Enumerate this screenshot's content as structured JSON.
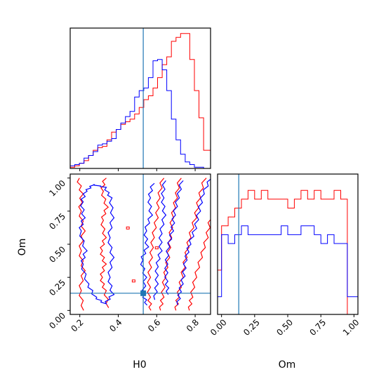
{
  "chart_data": {
    "type": "corner",
    "parameters": [
      "H0",
      "Om"
    ],
    "truths": {
      "H0": 0.53,
      "Om": 0.13
    },
    "colors": {
      "series_a": "#ff0000",
      "series_b": "#0000ff",
      "truth": "#1f77b4"
    },
    "series": [
      {
        "color": "red"
      },
      {
        "color": "blue"
      }
    ],
    "axes": {
      "h0": {
        "label": "H0",
        "range": [
          0.15,
          0.88
        ],
        "ticks": [
          0.2,
          0.4,
          0.6,
          0.8
        ],
        "tick_labels": [
          "0.2",
          "0.4",
          "0.6",
          "0.8"
        ]
      },
      "om": {
        "label": "Om",
        "range": [
          -0.03,
          1.03
        ],
        "ticks": [
          0.0,
          0.25,
          0.5,
          0.75,
          1.0
        ],
        "tick_labels": [
          "0.00",
          "0.25",
          "0.50",
          "0.75",
          "1.00"
        ]
      }
    },
    "hist_h0": {
      "bin_edges": [
        0.15,
        0.1739,
        0.1979,
        0.2218,
        0.2457,
        0.2696,
        0.2936,
        0.3175,
        0.3414,
        0.3653,
        0.3893,
        0.4132,
        0.4371,
        0.461,
        0.485,
        0.5089,
        0.5328,
        0.5567,
        0.5807,
        0.6046,
        0.6285,
        0.6524,
        0.6764,
        0.7003,
        0.7242,
        0.7481,
        0.7721,
        0.796,
        0.8199,
        0.8438,
        0.8678,
        0.88
      ],
      "red": [
        1,
        2,
        4,
        6,
        10,
        14,
        16,
        17,
        22,
        28,
        30,
        34,
        36,
        38,
        42,
        47,
        53,
        56,
        62,
        70,
        80,
        86,
        98,
        101,
        104,
        104,
        84,
        60,
        39,
        14,
        14
      ],
      "blue": [
        2,
        3,
        4,
        8,
        10,
        13,
        18,
        19,
        21,
        23,
        30,
        35,
        40,
        44,
        55,
        60,
        62,
        70,
        83,
        84,
        76,
        60,
        38,
        22,
        11,
        5,
        3,
        1,
        1,
        0,
        0
      ]
    },
    "hist_om": {
      "bin_edges": [
        -0.03,
        0.0,
        0.05,
        0.1,
        0.15,
        0.2,
        0.25,
        0.3,
        0.35,
        0.4,
        0.45,
        0.5,
        0.55,
        0.6,
        0.65,
        0.7,
        0.75,
        0.8,
        0.85,
        0.9,
        0.95,
        1.0,
        1.03
      ],
      "red": [
        5,
        10,
        11,
        12,
        13,
        14,
        13,
        14,
        13,
        13,
        13,
        12,
        13,
        14,
        13,
        14,
        13,
        13,
        14,
        13,
        0,
        0
      ],
      "blue": [
        2,
        9,
        8,
        9,
        10,
        9,
        9,
        9,
        9,
        9,
        10,
        9,
        9,
        10,
        10,
        9,
        8,
        9,
        8,
        8,
        2,
        2
      ]
    },
    "contours": {
      "red": [
        [
          [
            0.33,
            1.0
          ],
          [
            0.315,
            0.9
          ],
          [
            0.34,
            0.78
          ],
          [
            0.315,
            0.68
          ],
          [
            0.33,
            0.55
          ],
          [
            0.31,
            0.45
          ],
          [
            0.33,
            0.35
          ],
          [
            0.31,
            0.25
          ],
          [
            0.33,
            0.15
          ],
          [
            0.35,
            0.02
          ]
        ],
        [
          [
            0.19,
            1.0
          ],
          [
            0.21,
            0.88
          ],
          [
            0.2,
            0.75
          ],
          [
            0.22,
            0.6
          ],
          [
            0.2,
            0.45
          ],
          [
            0.22,
            0.3
          ],
          [
            0.2,
            0.15
          ],
          [
            0.22,
            0.0
          ]
        ],
        [
          [
            0.63,
            1.0
          ],
          [
            0.61,
            0.85
          ],
          [
            0.6,
            0.7
          ],
          [
            0.58,
            0.55
          ],
          [
            0.57,
            0.4
          ],
          [
            0.56,
            0.25
          ],
          [
            0.56,
            0.1
          ],
          [
            0.57,
            0.0
          ]
        ],
        [
          [
            0.72,
            1.0
          ],
          [
            0.7,
            0.85
          ],
          [
            0.68,
            0.7
          ],
          [
            0.67,
            0.55
          ],
          [
            0.66,
            0.4
          ],
          [
            0.64,
            0.25
          ],
          [
            0.63,
            0.1
          ],
          [
            0.62,
            0.0
          ]
        ],
        [
          [
            0.85,
            1.0
          ],
          [
            0.82,
            0.85
          ],
          [
            0.8,
            0.7
          ],
          [
            0.77,
            0.55
          ],
          [
            0.75,
            0.4
          ],
          [
            0.73,
            0.25
          ],
          [
            0.71,
            0.1
          ],
          [
            0.7,
            0.0
          ]
        ],
        [
          [
            0.88,
            0.7
          ],
          [
            0.86,
            0.55
          ],
          [
            0.83,
            0.4
          ],
          [
            0.8,
            0.25
          ],
          [
            0.78,
            0.1
          ],
          [
            0.77,
            0.0
          ]
        ]
      ],
      "blue": [
        [
          [
            0.58,
            0.96
          ],
          [
            0.56,
            0.85
          ],
          [
            0.57,
            0.72
          ],
          [
            0.54,
            0.6
          ],
          [
            0.55,
            0.48
          ],
          [
            0.52,
            0.38
          ],
          [
            0.54,
            0.25
          ],
          [
            0.53,
            0.12
          ],
          [
            0.55,
            0.04
          ]
        ],
        [
          [
            0.64,
            0.98
          ],
          [
            0.63,
            0.85
          ],
          [
            0.64,
            0.72
          ],
          [
            0.62,
            0.58
          ],
          [
            0.62,
            0.45
          ],
          [
            0.6,
            0.33
          ],
          [
            0.6,
            0.2
          ],
          [
            0.59,
            0.08
          ]
        ],
        [
          [
            0.73,
            0.98
          ],
          [
            0.71,
            0.85
          ],
          [
            0.69,
            0.72
          ],
          [
            0.68,
            0.6
          ],
          [
            0.66,
            0.48
          ],
          [
            0.65,
            0.35
          ],
          [
            0.65,
            0.22
          ],
          [
            0.66,
            0.12
          ]
        ],
        [
          [
            0.88,
            1.0
          ],
          [
            0.84,
            0.88
          ],
          [
            0.82,
            0.75
          ],
          [
            0.8,
            0.62
          ],
          [
            0.77,
            0.5
          ],
          [
            0.75,
            0.38
          ],
          [
            0.74,
            0.26
          ],
          [
            0.72,
            0.14
          ],
          [
            0.71,
            0.04
          ]
        ]
      ],
      "blue_closed": [
        [
          [
            0.27,
            0.95
          ],
          [
            0.23,
            0.9
          ],
          [
            0.21,
            0.82
          ],
          [
            0.22,
            0.7
          ],
          [
            0.2,
            0.6
          ],
          [
            0.23,
            0.45
          ],
          [
            0.21,
            0.35
          ],
          [
            0.24,
            0.2
          ],
          [
            0.28,
            0.1
          ],
          [
            0.33,
            0.05
          ],
          [
            0.37,
            0.12
          ],
          [
            0.35,
            0.25
          ],
          [
            0.37,
            0.4
          ],
          [
            0.35,
            0.55
          ],
          [
            0.37,
            0.7
          ],
          [
            0.36,
            0.85
          ],
          [
            0.33,
            0.93
          ],
          [
            0.27,
            0.95
          ]
        ]
      ]
    },
    "truth_marker": {
      "H0": 0.53,
      "Om": 0.13
    }
  }
}
